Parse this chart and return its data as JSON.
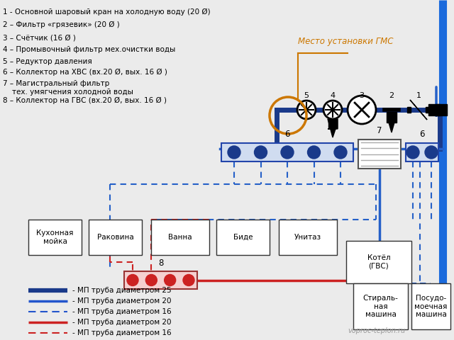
{
  "bg_color": "#ebebeb",
  "legend_items": [
    {
      "label": "- МП труба диаметром 25",
      "color": "#1a3a8a",
      "lw": 4.5,
      "ls": "solid"
    },
    {
      "label": "- МП труба диаметром 20",
      "color": "#2255cc",
      "lw": 2.5,
      "ls": "solid"
    },
    {
      "label": "- МП труба диаметром 16",
      "color": "#2255cc",
      "lw": 1.5,
      "ls": "dashed"
    },
    {
      "label": "- МП труба диаметром 20",
      "color": "#cc2222",
      "lw": 2.5,
      "ls": "solid"
    },
    {
      "label": "- МП труба диаметром 16",
      "color": "#cc2222",
      "lw": 1.5,
      "ls": "dashed"
    }
  ],
  "labels_left": [
    "1 - Основной шаровый кран на холодную воду (20 Ø)",
    "2 – Фильтр «грязевик» (20 Ø )",
    "3 – Счётчик (16 Ø )",
    "4 – Промывочный фильтр мех.очистки воды",
    "5 – Редуктор давления",
    "6 – Коллектор на ХВС (вх.20 Ø, вых. 16 Ø )",
    "7 – Магистральный фильтр\n    тех. умягчения холодной воды",
    "8 – Коллектор на ГВС (вх.20 Ø, вых. 16 Ø )"
  ],
  "mc": "#1a3a8a",
  "mlw": 5,
  "cc": "#2560c8",
  "clw": 2.5,
  "cdlw": 1.5,
  "hc": "#cc2222",
  "hlw": 2.5,
  "hdlw": 1.5,
  "oc": "#cc7700",
  "wall_color": "#1a6adc",
  "wall_lw": 8,
  "watermark": "voproc-teplon.ru"
}
